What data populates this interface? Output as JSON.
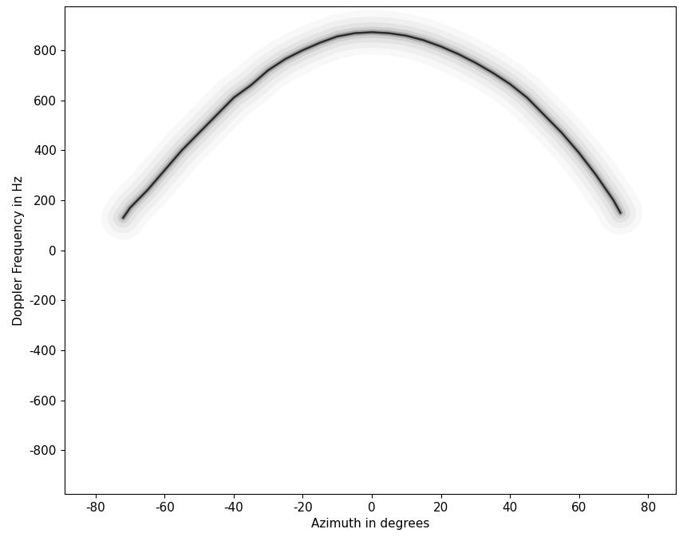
{
  "chart_data": {
    "type": "line",
    "xlabel": "Azimuth in degrees",
    "ylabel": "Doppler Frequency in Hz",
    "x": [
      -72,
      -70,
      -65,
      -60,
      -55,
      -50,
      -45,
      -40,
      -35,
      -30,
      -25,
      -20,
      -15,
      -10,
      -5,
      0,
      5,
      10,
      15,
      20,
      25,
      30,
      35,
      40,
      45,
      50,
      55,
      60,
      65,
      70,
      72
    ],
    "values": [
      130,
      170,
      240,
      320,
      400,
      470,
      540,
      610,
      660,
      720,
      765,
      800,
      830,
      855,
      868,
      872,
      868,
      858,
      840,
      815,
      785,
      750,
      710,
      665,
      610,
      540,
      470,
      390,
      300,
      200,
      150
    ],
    "color": "#2b2b2b",
    "xlim": [
      -89,
      88
    ],
    "ylim": [
      -975,
      975
    ],
    "xticks": [
      -80,
      -60,
      -40,
      -20,
      0,
      20,
      40,
      60,
      80
    ],
    "yticks": [
      -800,
      -600,
      -400,
      -200,
      0,
      200,
      400,
      600,
      800
    ],
    "grid": false
  }
}
